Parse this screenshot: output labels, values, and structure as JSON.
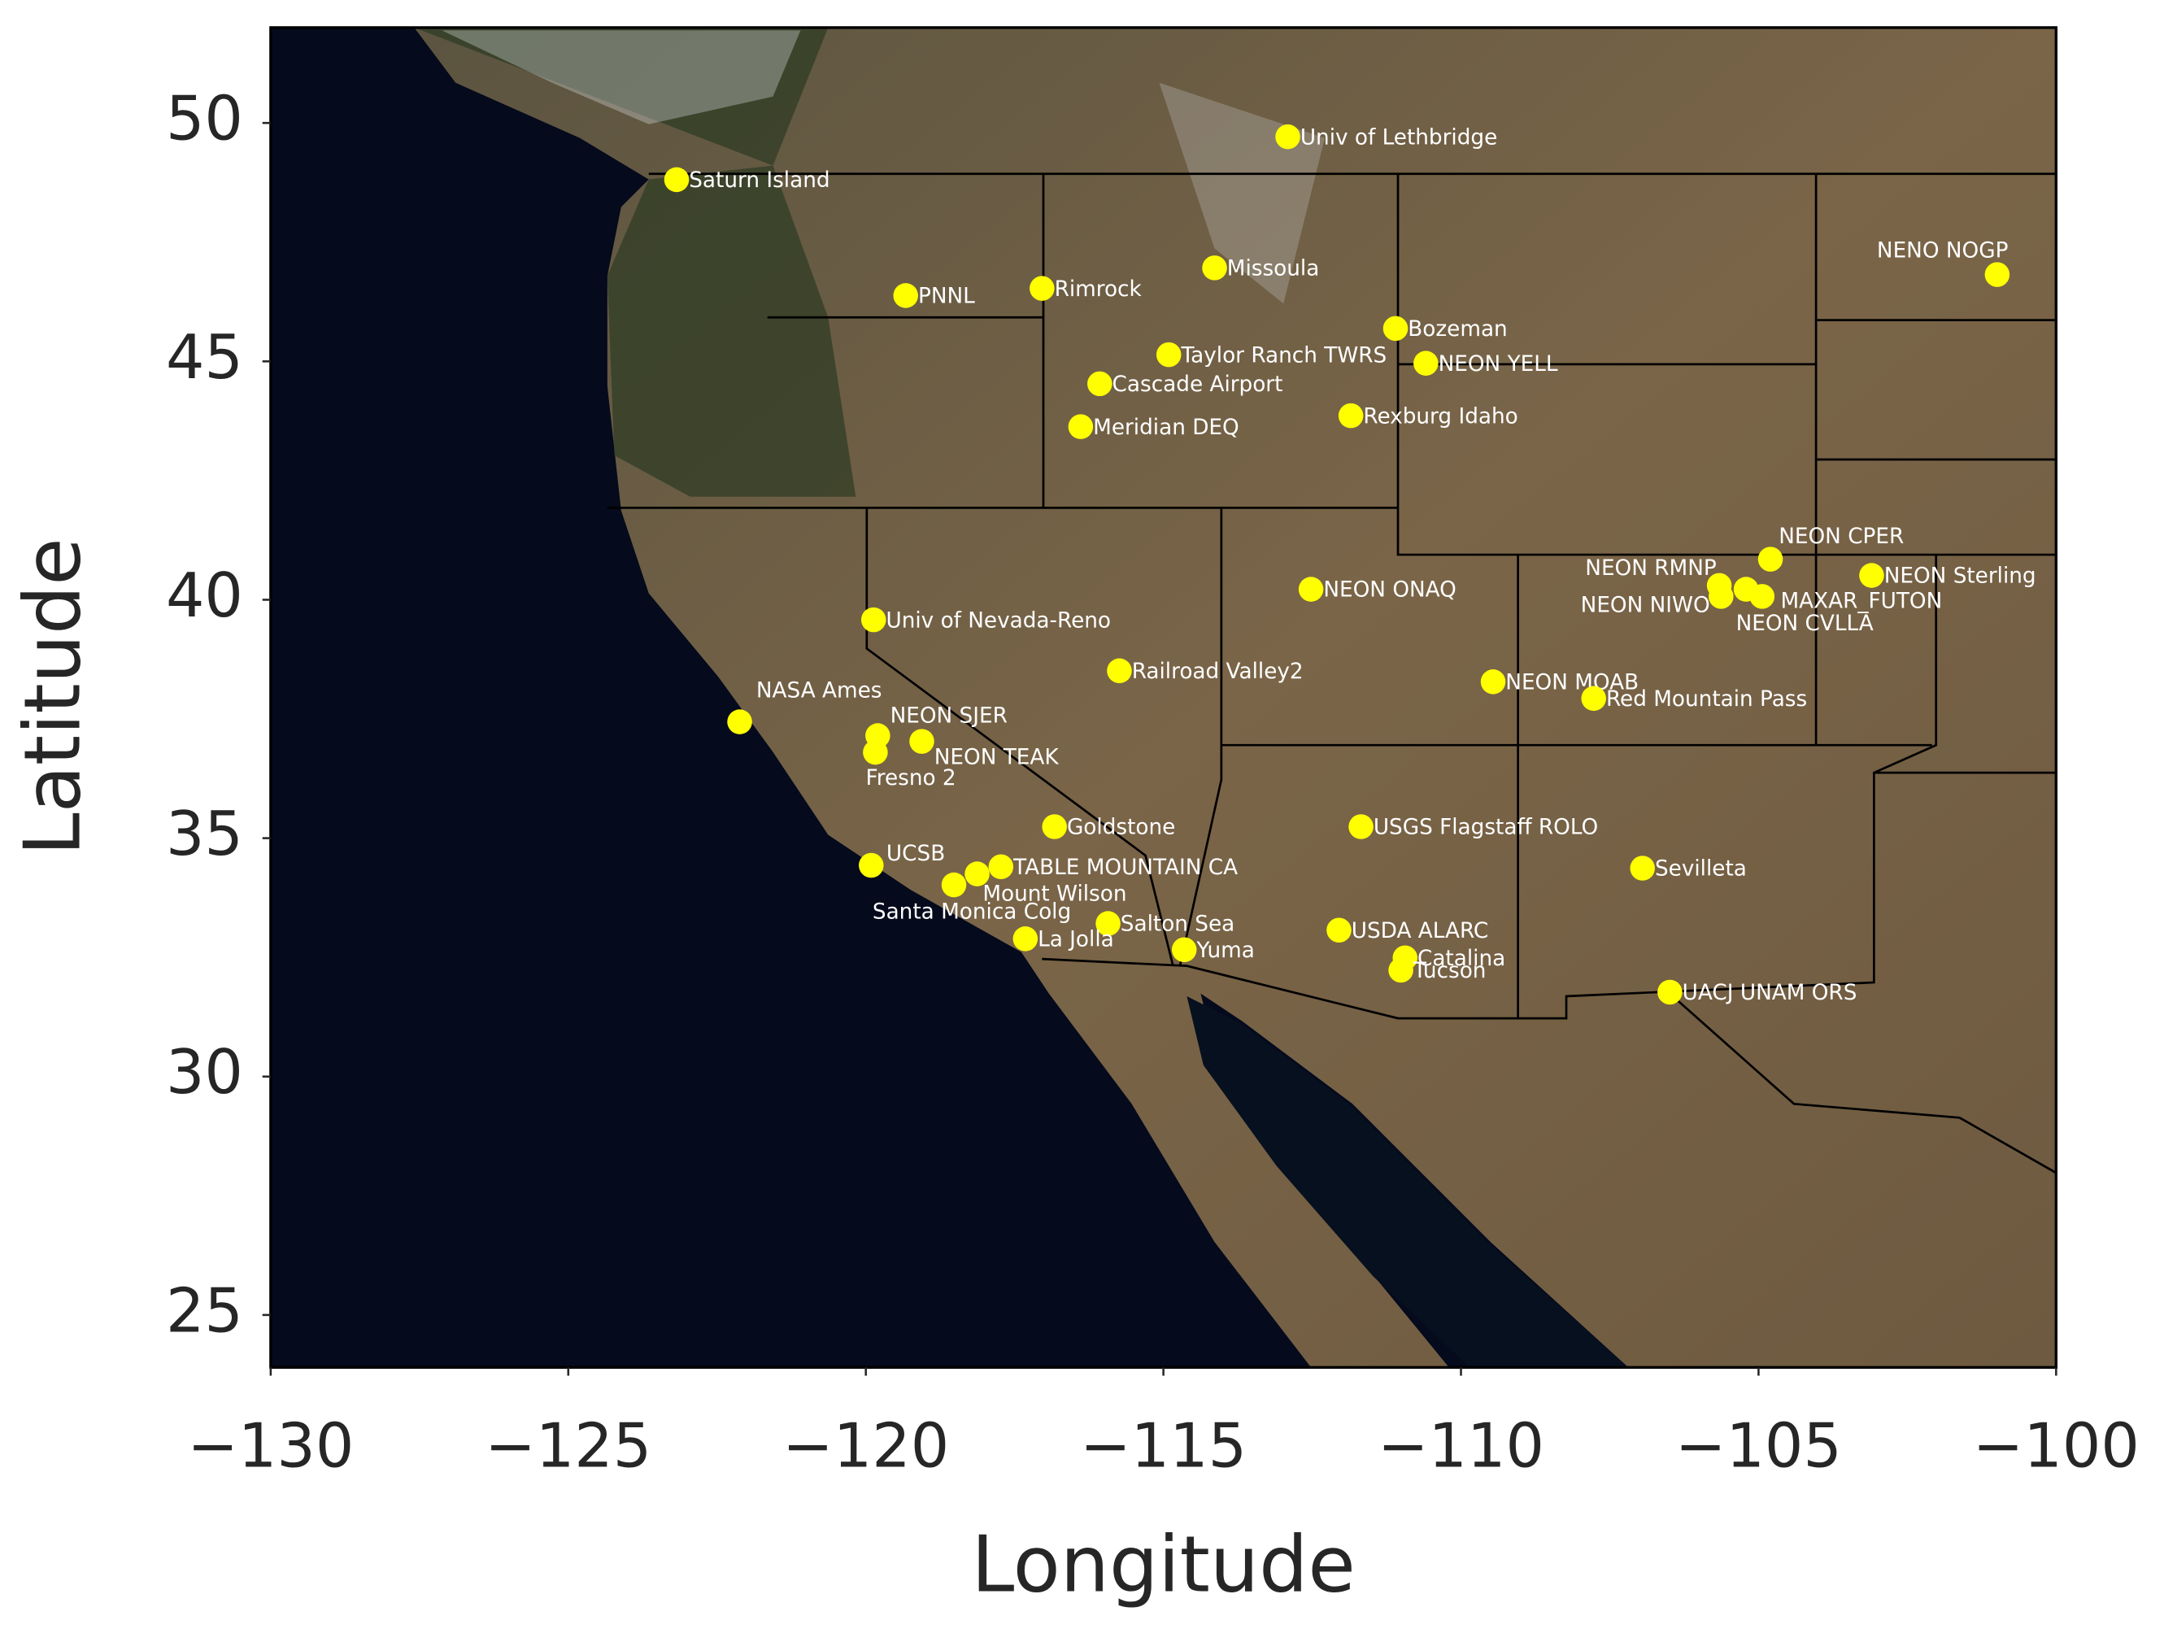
{
  "chart_data": {
    "type": "scatter",
    "xlabel": "Longitude",
    "ylabel": "Latitude",
    "xlim": [
      -130,
      -100
    ],
    "ylim": [
      23.9,
      52.0
    ],
    "xticks": [
      {
        "value": -130,
        "label": "−130"
      },
      {
        "value": -125,
        "label": "−125"
      },
      {
        "value": -120,
        "label": "−120"
      },
      {
        "value": -115,
        "label": "−115"
      },
      {
        "value": -110,
        "label": "−110"
      },
      {
        "value": -105,
        "label": "−105"
      },
      {
        "value": -100,
        "label": "−100"
      }
    ],
    "yticks": [
      25,
      30,
      35,
      40,
      45,
      50
    ],
    "color": "#ffff00",
    "labels": [
      "Saturn Island",
      "Univ of Lethbridge",
      "NENO NOGP",
      "PNNL",
      "Rimrock",
      "Missoula",
      "Bozeman",
      "Taylor Ranch TWRS",
      "NEON YELL",
      "Cascade Airport",
      "Rexburg Idaho",
      "Meridian DEQ",
      "NEON CPER",
      "NEON Sterling",
      "NEON RMNP",
      "NEON NIWO",
      "MAXAR_FUTON",
      "NEON CVLLA",
      "NEON ONAQ",
      "Univ of Nevada-Reno",
      "Railroad Valley2",
      "NEON MOAB",
      "Red Mountain Pass",
      "NASA Ames",
      "NEON SJER",
      "NEON TEAK",
      "Fresno 2",
      "Goldstone",
      "USGS Flagstaff ROLO",
      "Sevilleta",
      "UCSB",
      "TABLE MOUNTAIN CA",
      "Mount Wilson",
      "Santa Monica Colg",
      "Salton Sea",
      "USDA ALARC",
      "Catalina",
      "Tucson",
      "La Jolla",
      "Yuma",
      "UACJ UNAM ORS"
    ],
    "x": [
      -123.18,
      -112.91,
      -100.99,
      -119.33,
      -117.04,
      -114.14,
      -111.1,
      -114.91,
      -110.59,
      -116.07,
      -111.85,
      -116.39,
      -104.8,
      -103.1,
      -105.66,
      -105.63,
      -105.21,
      -104.94,
      -112.52,
      -119.87,
      -115.74,
      -109.46,
      -107.77,
      -122.12,
      -119.8,
      -119.06,
      -119.84,
      -116.83,
      -111.68,
      -106.95,
      -119.91,
      -117.73,
      -118.13,
      -118.52,
      -115.93,
      -112.05,
      -110.94,
      -111.01,
      -117.32,
      -114.65,
      -106.49
    ],
    "values": [
      48.81,
      49.71,
      46.82,
      46.38,
      46.53,
      46.96,
      45.69,
      45.14,
      44.96,
      44.53,
      43.86,
      43.63,
      40.85,
      40.51,
      40.3,
      40.07,
      40.22,
      40.07,
      40.22,
      39.58,
      38.51,
      38.28,
      37.93,
      37.44,
      37.15,
      37.03,
      36.8,
      35.24,
      35.24,
      34.37,
      34.43,
      34.4,
      34.25,
      34.02,
      33.21,
      33.07,
      32.49,
      32.23,
      32.89,
      32.66,
      31.77
    ]
  }
}
